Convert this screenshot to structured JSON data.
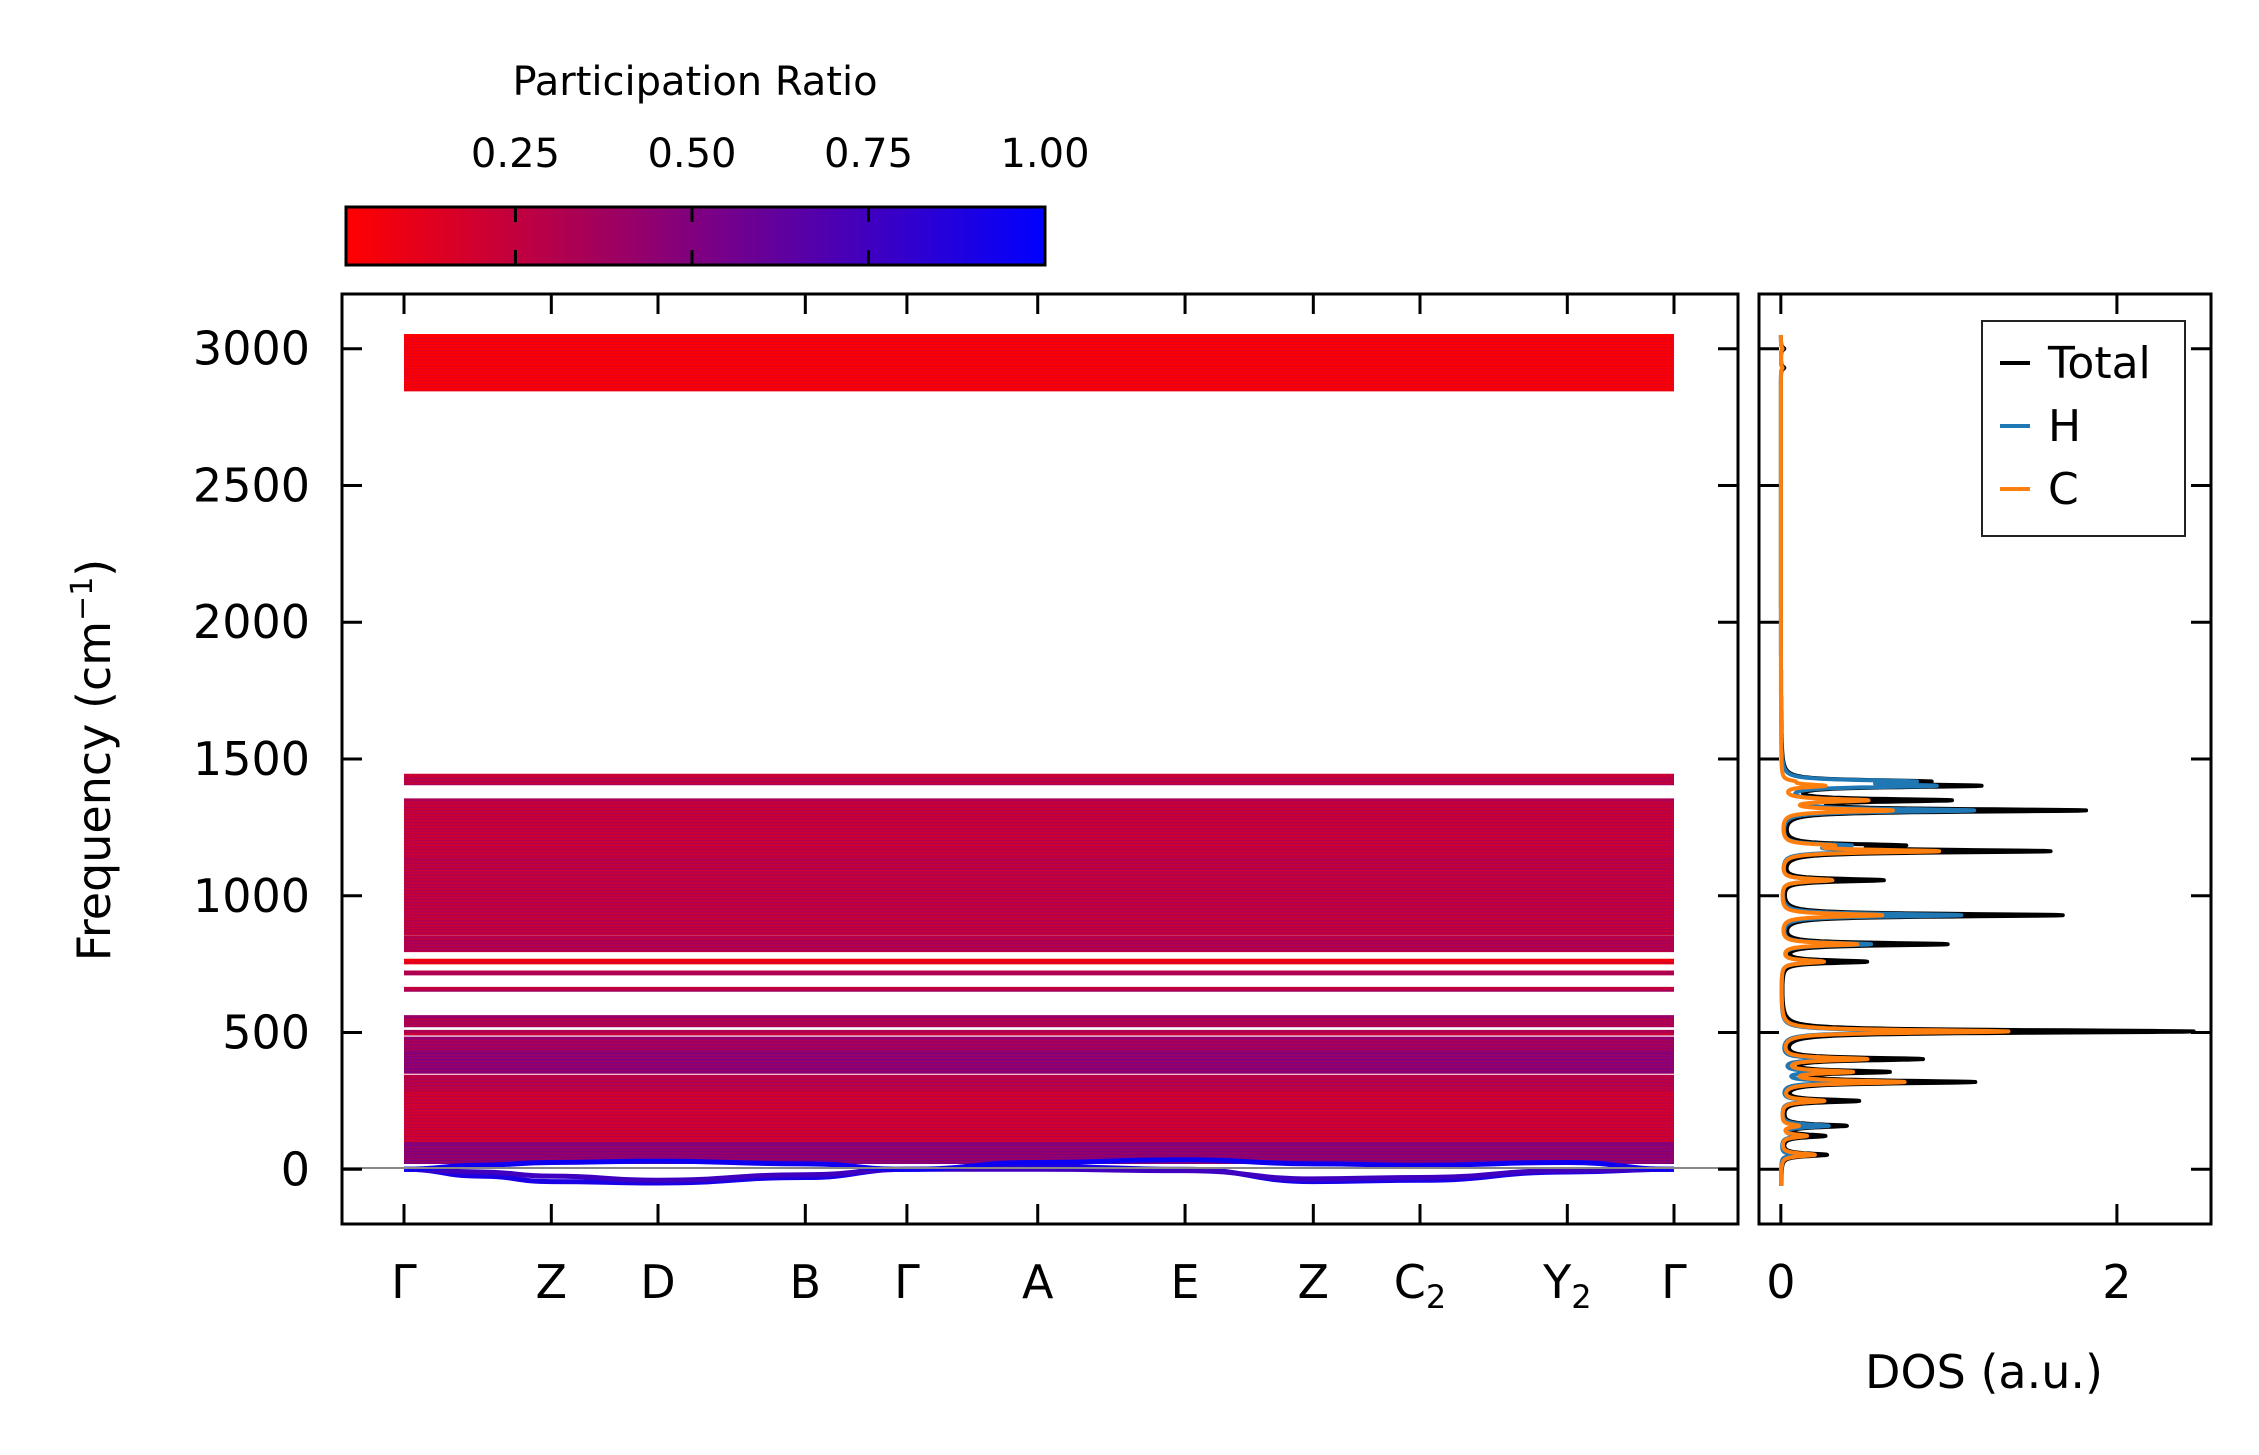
{
  "chart_data": [
    {
      "type": "line",
      "title": "",
      "subplot": "phonon-band-structure",
      "ylabel_main": "Frequency (cm",
      "ylabel_sup": "−1",
      "ylabel_close": ")",
      "ylim": [
        -200,
        3200
      ],
      "yticks": [
        0,
        500,
        1000,
        1500,
        2000,
        2500,
        3000
      ],
      "ytick_labels": [
        "0",
        "500",
        "1000",
        "1500",
        "2000",
        "2500",
        "3000"
      ],
      "kpath": [
        {
          "label": "Γ",
          "sub": "",
          "dist": 0.0
        },
        {
          "label": "Z",
          "sub": "",
          "dist": 0.116
        },
        {
          "label": "D",
          "sub": "",
          "dist": 0.2
        },
        {
          "label": "B",
          "sub": "",
          "dist": 0.316
        },
        {
          "label": "Γ",
          "sub": "",
          "dist": 0.396
        },
        {
          "label": "A",
          "sub": "",
          "dist": 0.499
        },
        {
          "label": "E",
          "sub": "",
          "dist": 0.615
        },
        {
          "label": "Z",
          "sub": "",
          "dist": 0.716
        },
        {
          "label": "C",
          "sub": "2",
          "dist": 0.8
        },
        {
          "label": "Y",
          "sub": "2",
          "dist": 0.916
        },
        {
          "label": "Γ",
          "sub": "",
          "dist": 1.0
        }
      ],
      "zero_line_color": "#888888",
      "band_blocks": [
        {
          "from": 2850,
          "to": 3050,
          "pr": 0.05
        },
        {
          "from": 1410,
          "to": 1440,
          "pr": 0.28
        },
        {
          "from": 1140,
          "to": 1350,
          "pr": 0.25
        },
        {
          "from": 860,
          "to": 1135,
          "pr": 0.27
        },
        {
          "from": 800,
          "to": 850,
          "pr": 0.32
        },
        {
          "from": 755,
          "to": 765,
          "pr": 0.12
        },
        {
          "from": 715,
          "to": 722,
          "pr": 0.3
        },
        {
          "from": 655,
          "to": 662,
          "pr": 0.32
        },
        {
          "from": 525,
          "to": 560,
          "pr": 0.33
        },
        {
          "from": 495,
          "to": 505,
          "pr": 0.25
        },
        {
          "from": 440,
          "to": 480,
          "pr": 0.38
        },
        {
          "from": 355,
          "to": 430,
          "pr": 0.45
        },
        {
          "from": 295,
          "to": 340,
          "pr": 0.3
        },
        {
          "from": 100,
          "to": 290,
          "pr": 0.22
        },
        {
          "from": 25,
          "to": 95,
          "pr": 0.45
        }
      ],
      "acoustic_branches": [
        {
          "pr": 0.9,
          "points": [
            [
              0,
              0
            ],
            [
              0.06,
              -25
            ],
            [
              0.116,
              -45
            ],
            [
              0.2,
              -50
            ],
            [
              0.316,
              -30
            ],
            [
              0.396,
              0
            ],
            [
              0.499,
              10
            ],
            [
              0.615,
              0
            ],
            [
              0.716,
              -45
            ],
            [
              0.8,
              -40
            ],
            [
              0.916,
              -10
            ],
            [
              1.0,
              0
            ]
          ]
        },
        {
          "pr": 0.75,
          "points": [
            [
              0,
              0
            ],
            [
              0.06,
              -10
            ],
            [
              0.116,
              -25
            ],
            [
              0.2,
              -40
            ],
            [
              0.316,
              -20
            ],
            [
              0.396,
              0
            ],
            [
              0.499,
              0
            ],
            [
              0.615,
              -5
            ],
            [
              0.716,
              -35
            ],
            [
              0.8,
              -30
            ],
            [
              0.916,
              -5
            ],
            [
              1.0,
              0
            ]
          ]
        },
        {
          "pr": 0.95,
          "points": [
            [
              0,
              0
            ],
            [
              0.06,
              15
            ],
            [
              0.116,
              25
            ],
            [
              0.2,
              30
            ],
            [
              0.316,
              20
            ],
            [
              0.396,
              0
            ],
            [
              0.499,
              25
            ],
            [
              0.615,
              35
            ],
            [
              0.716,
              20
            ],
            [
              0.8,
              15
            ],
            [
              0.916,
              25
            ],
            [
              1.0,
              0
            ]
          ]
        }
      ]
    },
    {
      "type": "line",
      "subplot": "density-of-states",
      "xlabel": "DOS (a.u.)",
      "xlim": [
        -0.13,
        2.56
      ],
      "xticks": [
        0,
        2
      ],
      "xtick_labels": [
        "0",
        "2"
      ],
      "ylim": [
        -200,
        3200
      ],
      "legend_position": "top-right",
      "series": [
        {
          "name": "Total",
          "color": "#000000"
        },
        {
          "name": "H",
          "color": "#1f77b4"
        },
        {
          "name": "C",
          "color": "#ff7f0e"
        }
      ],
      "peaks": [
        {
          "freq": 3000,
          "total": 0.02,
          "C": 0.01
        },
        {
          "freq": 2930,
          "total": 0.02,
          "C": 0.01
        },
        {
          "freq": 1418,
          "total": 0.75,
          "C": 0.05
        },
        {
          "freq": 1402,
          "total": 1.08,
          "C": 0.25
        },
        {
          "freq": 1349,
          "total": 0.95,
          "C": 0.5
        },
        {
          "freq": 1312,
          "total": 1.78,
          "C": 0.65
        },
        {
          "freq": 1184,
          "total": 0.62,
          "C": 0.25
        },
        {
          "freq": 1163,
          "total": 1.55,
          "C": 0.92
        },
        {
          "freq": 1057,
          "total": 0.6,
          "C": 0.3
        },
        {
          "freq": 929,
          "total": 1.67,
          "C": 0.6
        },
        {
          "freq": 823,
          "total": 0.98,
          "C": 0.45
        },
        {
          "freq": 759,
          "total": 0.5,
          "C": 0.25
        },
        {
          "freq": 504,
          "total": 2.45,
          "C": 1.35
        },
        {
          "freq": 403,
          "total": 0.82,
          "C": 0.5
        },
        {
          "freq": 356,
          "total": 0.6,
          "C": 0.4
        },
        {
          "freq": 319,
          "total": 1.13,
          "C": 0.72
        },
        {
          "freq": 250,
          "total": 0.45,
          "C": 0.25
        },
        {
          "freq": 159,
          "total": 0.38,
          "C": 0.1
        },
        {
          "freq": 122,
          "total": 0.25,
          "C": 0.15
        },
        {
          "freq": 53,
          "total": 0.27,
          "C": 0.2
        }
      ]
    },
    {
      "type": "colorbar",
      "title": "Participation Ratio",
      "range": [
        0.01,
        1.0
      ],
      "ticks": [
        0.25,
        0.5,
        0.75,
        1.0
      ],
      "tick_labels": [
        "0.25",
        "0.50",
        "0.75",
        "1.00"
      ],
      "color_low": "#ff0000",
      "color_high": "#0000ff"
    }
  ]
}
